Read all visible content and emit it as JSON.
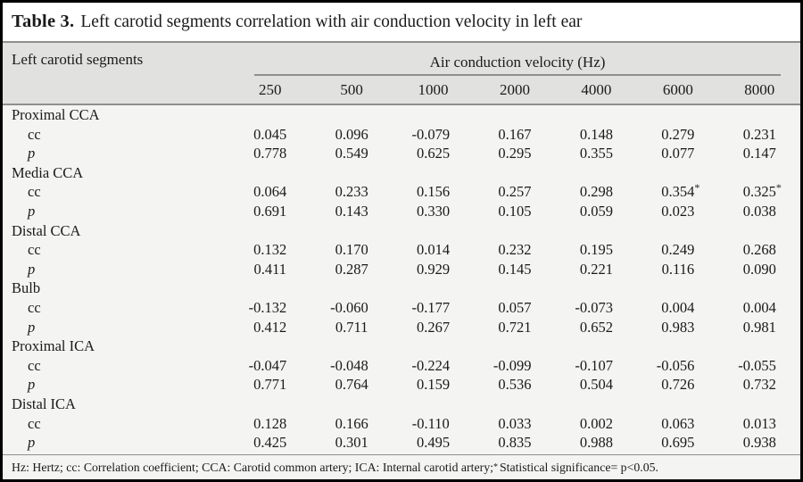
{
  "title": {
    "prefix": "Table 3.",
    "text": "Left carotid segments correlation with air conduction velocity in left ear"
  },
  "table": {
    "row_header": "Left carotid segments",
    "group_header": "Air conduction velocity (Hz)",
    "frequencies": [
      "250",
      "500",
      "1000",
      "2000",
      "4000",
      "6000",
      "8000"
    ],
    "sections": [
      {
        "name": "Proximal CCA",
        "rows": [
          {
            "label": "cc",
            "italic": false,
            "values": [
              "0.045",
              "0.096",
              "-0.079",
              "0.167",
              "0.148",
              "0.279",
              "0.231"
            ]
          },
          {
            "label": "p",
            "italic": true,
            "values": [
              "0.778",
              "0.549",
              "0.625",
              "0.295",
              "0.355",
              "0.077",
              "0.147"
            ]
          }
        ]
      },
      {
        "name": "Media CCA",
        "rows": [
          {
            "label": "cc",
            "italic": false,
            "values": [
              "0.064",
              "0.233",
              "0.156",
              "0.257",
              "0.298",
              "0.354*",
              "0.325*"
            ]
          },
          {
            "label": "p",
            "italic": true,
            "values": [
              "0.691",
              "0.143",
              "0.330",
              "0.105",
              "0.059",
              "0.023",
              "0.038"
            ]
          }
        ]
      },
      {
        "name": "Distal CCA",
        "rows": [
          {
            "label": "cc",
            "italic": false,
            "values": [
              "0.132",
              "0.170",
              "0.014",
              "0.232",
              "0.195",
              "0.249",
              "0.268"
            ]
          },
          {
            "label": "p",
            "italic": true,
            "values": [
              "0.411",
              "0.287",
              "0.929",
              "0.145",
              "0.221",
              "0.116",
              "0.090"
            ]
          }
        ]
      },
      {
        "name": "Bulb",
        "rows": [
          {
            "label": "cc",
            "italic": false,
            "values": [
              "-0.132",
              "-0.060",
              "-0.177",
              "0.057",
              "-0.073",
              "0.004",
              "0.004"
            ]
          },
          {
            "label": "p",
            "italic": true,
            "values": [
              "0.412",
              "0.711",
              "0.267",
              "0.721",
              "0.652",
              "0.983",
              "0.981"
            ]
          }
        ]
      },
      {
        "name": "Proximal ICA",
        "rows": [
          {
            "label": "cc",
            "italic": false,
            "values": [
              "-0.047",
              "-0.048",
              "-0.224",
              "-0.099",
              "-0.107",
              "-0.056",
              "-0.055"
            ]
          },
          {
            "label": "p",
            "italic": true,
            "values": [
              "0.771",
              "0.764",
              "0.159",
              "0.536",
              "0.504",
              "0.726",
              "0.732"
            ]
          }
        ]
      },
      {
        "name": "Distal ICA",
        "rows": [
          {
            "label": "cc",
            "italic": false,
            "values": [
              "0.128",
              "0.166",
              "-0.110",
              "0.033",
              "0.002",
              "0.063",
              "0.013"
            ]
          },
          {
            "label": "p",
            "italic": true,
            "values": [
              "0.425",
              "0.301",
              "0.495",
              "0.835",
              "0.988",
              "0.695",
              "0.938"
            ]
          }
        ]
      }
    ]
  },
  "footnote": {
    "abbreviations": "Hz: Hertz; cc: Correlation coefficient; CCA: Carotid common artery; ICA: Internal carotid artery; ",
    "marker": "*",
    "significance": " Statistical significance= p<0.05."
  },
  "colors": {
    "outer_border": "#000000",
    "title_band": "#ffffff",
    "header_band": "#e1e1df",
    "data_band": "#f4f4f2",
    "rule": "#8f8f8f",
    "text": "#1a1a1a"
  }
}
